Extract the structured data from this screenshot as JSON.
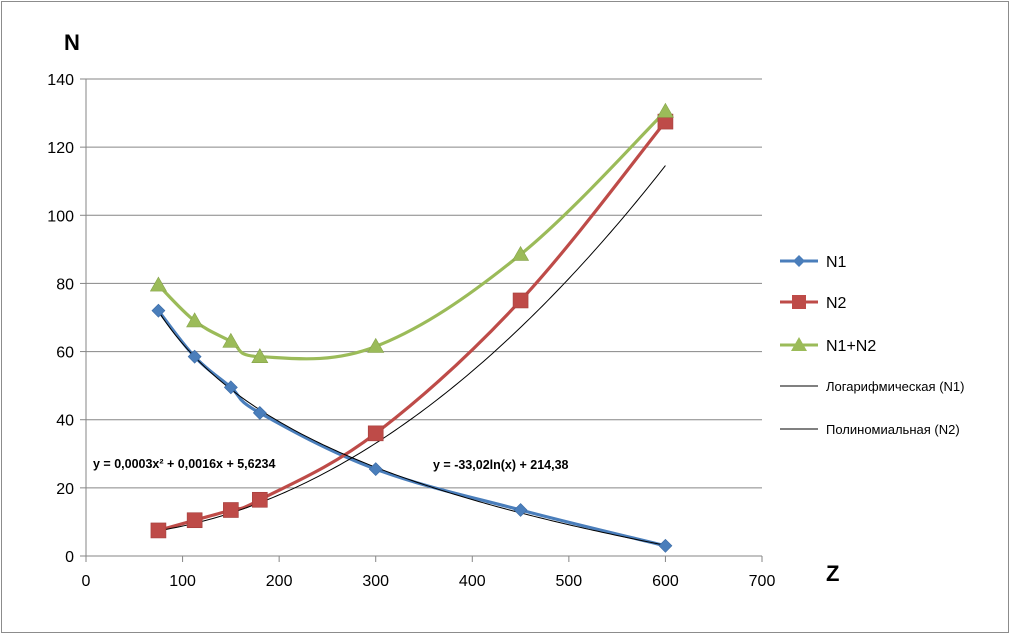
{
  "chart_data": {
    "type": "scatter",
    "xlabel": "Z",
    "ylabel": "N",
    "xlim": [
      0,
      700
    ],
    "ylim": [
      0,
      140
    ],
    "x_ticks": [
      "0",
      "100",
      "200",
      "300",
      "400",
      "500",
      "600",
      "700"
    ],
    "y_ticks": [
      "0",
      "20",
      "40",
      "60",
      "80",
      "100",
      "120",
      "140"
    ],
    "grid": "horizontal",
    "legend_position": "right",
    "series": [
      {
        "name": "N1",
        "color": "#4a7ebb",
        "marker": "diamond",
        "smooth": true,
        "x": [
          75,
          112.5,
          150,
          180,
          300,
          450,
          600
        ],
        "y": [
          72,
          58.5,
          49.5,
          42,
          25.5,
          13.5,
          3
        ]
      },
      {
        "name": "N2",
        "color": "#be4b48",
        "marker": "square",
        "smooth": true,
        "x": [
          75,
          112.5,
          150,
          180,
          300,
          450,
          600
        ],
        "y": [
          7.5,
          10.5,
          13.5,
          16.5,
          36,
          75,
          127.5
        ]
      },
      {
        "name": "N1+N2",
        "color": "#9bbb59",
        "marker": "triangle",
        "smooth": true,
        "x": [
          75,
          112.5,
          150,
          180,
          300,
          450,
          600
        ],
        "y": [
          79.5,
          69,
          63,
          58.5,
          61.5,
          88.5,
          130.5
        ]
      }
    ],
    "trendlines": [
      {
        "name": "Логарифмическая (N1)",
        "type": "log",
        "color": "#000000",
        "a": -33.02,
        "b": 214.38,
        "x_range": [
          75,
          600
        ],
        "equation": "y = -33,02ln(x) + 214,38"
      },
      {
        "name": "Полиномиальная (N2)",
        "type": "poly2",
        "color": "#000000",
        "coefficients": [
          0.0003,
          0.0016,
          5.6234
        ],
        "x_range": [
          75,
          600
        ],
        "equation": "y = 0,0003x² + 0,0016x + 5,6234"
      }
    ]
  }
}
